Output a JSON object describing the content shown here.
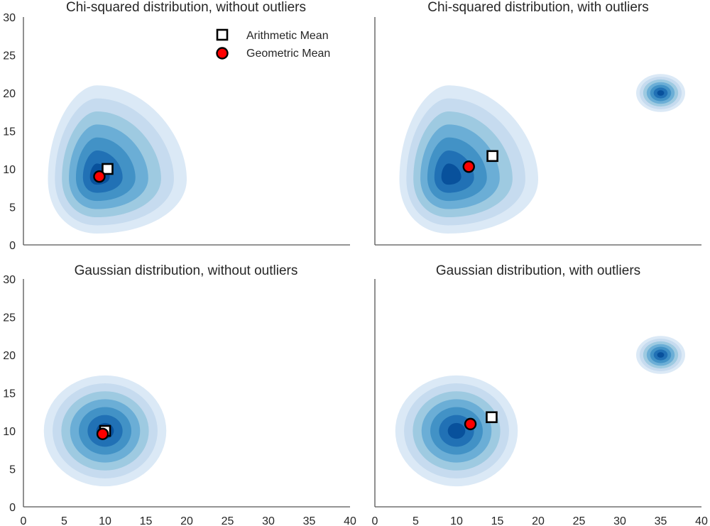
{
  "chart_data": [
    {
      "type": "kde-contour",
      "title": "Chi-squared distribution, without outliers",
      "xlim": [
        0,
        40
      ],
      "ylim": [
        0,
        30
      ],
      "xticks": [],
      "yticks": [
        0,
        5,
        10,
        15,
        20,
        25,
        30
      ],
      "density_blobs": [
        {
          "shape": "chi",
          "cx": 9,
          "cy": 9,
          "x_extent": [
            3,
            20
          ],
          "y_extent": [
            1.5,
            21
          ]
        }
      ],
      "points": [
        {
          "series": "Arithmetic Mean",
          "marker": "square",
          "x": 10.3,
          "y": 10.0
        },
        {
          "series": "Geometric Mean",
          "marker": "circle",
          "x": 9.3,
          "y": 9.0
        }
      ],
      "legend": {
        "position": "top-right",
        "entries": [
          "Arithmetic Mean",
          "Geometric Mean"
        ]
      }
    },
    {
      "type": "kde-contour",
      "title": "Chi-squared distribution, with outliers",
      "xlim": [
        0,
        40
      ],
      "ylim": [
        0,
        30
      ],
      "xticks": [],
      "yticks": [],
      "density_blobs": [
        {
          "shape": "chi",
          "cx": 9,
          "cy": 9,
          "x_extent": [
            3,
            20
          ],
          "y_extent": [
            1.5,
            21
          ]
        },
        {
          "shape": "round",
          "cx": 35,
          "cy": 20,
          "x_extent": [
            32,
            38
          ],
          "y_extent": [
            17.5,
            22.5
          ]
        }
      ],
      "points": [
        {
          "series": "Arithmetic Mean",
          "marker": "square",
          "x": 14.4,
          "y": 11.7
        },
        {
          "series": "Geometric Mean",
          "marker": "circle",
          "x": 11.5,
          "y": 10.3
        }
      ]
    },
    {
      "type": "kde-contour",
      "title": "Gaussian distribution, without outliers",
      "xlim": [
        0,
        40
      ],
      "ylim": [
        0,
        30
      ],
      "xticks": [
        0,
        5,
        10,
        15,
        20,
        25,
        30,
        35,
        40
      ],
      "yticks": [
        0,
        5,
        10,
        15,
        20,
        25,
        30
      ],
      "density_blobs": [
        {
          "shape": "round",
          "cx": 10,
          "cy": 10,
          "x_extent": [
            2.5,
            17.5
          ],
          "y_extent": [
            2.7,
            17.3
          ]
        }
      ],
      "points": [
        {
          "series": "Arithmetic Mean",
          "marker": "square",
          "x": 10.0,
          "y": 10.0
        },
        {
          "series": "Geometric Mean",
          "marker": "circle",
          "x": 9.7,
          "y": 9.6
        }
      ]
    },
    {
      "type": "kde-contour",
      "title": "Gaussian distribution, with outliers",
      "xlim": [
        0,
        40
      ],
      "ylim": [
        0,
        30
      ],
      "xticks": [
        0,
        5,
        10,
        15,
        20,
        25,
        30,
        35,
        40
      ],
      "yticks": [],
      "density_blobs": [
        {
          "shape": "round",
          "cx": 10,
          "cy": 10,
          "x_extent": [
            2.5,
            17.5
          ],
          "y_extent": [
            2.7,
            17.3
          ]
        },
        {
          "shape": "round",
          "cx": 35,
          "cy": 20,
          "x_extent": [
            32,
            38
          ],
          "y_extent": [
            17.5,
            22.5
          ]
        }
      ],
      "points": [
        {
          "series": "Arithmetic Mean",
          "marker": "square",
          "x": 14.3,
          "y": 11.8
        },
        {
          "series": "Geometric Mean",
          "marker": "circle",
          "x": 11.7,
          "y": 10.9
        }
      ]
    }
  ],
  "colors": {
    "contour_levels": [
      "#dbe9f6",
      "#c6dbef",
      "#9ecae1",
      "#6baed6",
      "#4292c6",
      "#2171b5",
      "#08519c"
    ],
    "arithmetic_marker_fill": "#ffffff",
    "geometric_marker_fill": "#ff0000",
    "marker_edge": "#000000",
    "axis": "#555555",
    "text": "#262626"
  }
}
